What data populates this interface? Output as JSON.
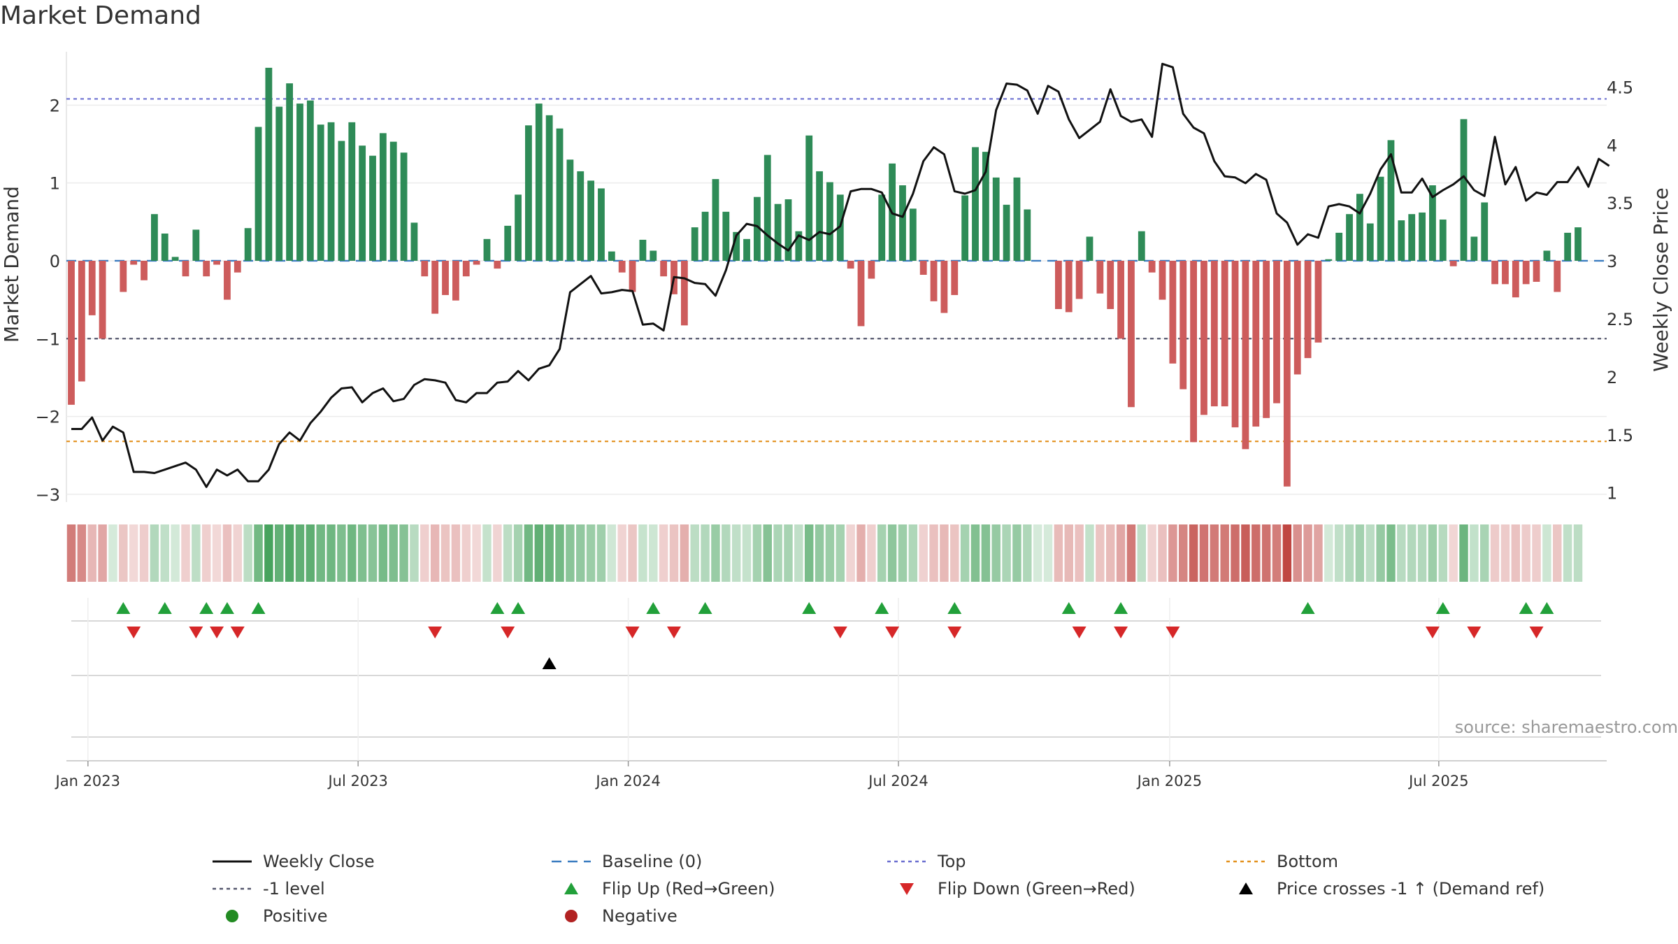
{
  "title": "Market Demand",
  "source": "source: sharemaestro.com",
  "chart_data": {
    "type": "bar",
    "title": "Market Demand",
    "ylabel": "Market Demand",
    "y2label": "Weekly Close Price",
    "ylim": [
      -3.1,
      2.65
    ],
    "y2lim": [
      0.92,
      4.78
    ],
    "yticks": [
      {
        "v": 2,
        "label": "2"
      },
      {
        "v": 1,
        "label": "1"
      },
      {
        "v": 0,
        "label": "0"
      },
      {
        "v": -1,
        "label": "−1"
      },
      {
        "v": -2,
        "label": "−2"
      },
      {
        "v": -3,
        "label": "−3"
      }
    ],
    "y2ticks": [
      {
        "v": 4.5,
        "label": "4.5"
      },
      {
        "v": 4,
        "label": "4"
      },
      {
        "v": 3.5,
        "label": "3.5"
      },
      {
        "v": 3,
        "label": "3"
      },
      {
        "v": 2.5,
        "label": "2.5"
      },
      {
        "v": 2,
        "label": "2"
      },
      {
        "v": 1.5,
        "label": "1.5"
      },
      {
        "v": 1,
        "label": "1"
      }
    ],
    "xticks": [
      {
        "pos": 1.6,
        "label": "Jan 2023"
      },
      {
        "pos": 27.6,
        "label": "Jul 2023"
      },
      {
        "pos": 53.6,
        "label": "Jan 2024"
      },
      {
        "pos": 79.6,
        "label": "Jul 2024"
      },
      {
        "pos": 105.7,
        "label": "Jan 2025"
      },
      {
        "pos": 131.6,
        "label": "Jul 2025"
      }
    ],
    "levels": {
      "top": 2.08,
      "bottom": -2.32,
      "minus_one": -1,
      "baseline": 0
    },
    "demand": [
      -1.85,
      -1.55,
      -0.7,
      -1.0,
      0,
      -0.4,
      -0.05,
      -0.25,
      0.6,
      0.35,
      0.05,
      -0.2,
      0.4,
      -0.2,
      -0.05,
      -0.5,
      -0.15,
      0.42,
      1.72,
      2.48,
      1.98,
      2.28,
      2.02,
      2.06,
      1.75,
      1.78,
      1.54,
      1.78,
      1.48,
      1.35,
      1.64,
      1.53,
      1.39,
      0.49,
      -0.2,
      -0.68,
      -0.44,
      -0.51,
      -0.2,
      -0.05,
      0.28,
      -0.1,
      0.45,
      0.85,
      1.74,
      2.02,
      1.87,
      1.7,
      1.3,
      1.15,
      1.03,
      0.93,
      0.12,
      -0.15,
      -0.4,
      0.27,
      0.13,
      -0.2,
      -0.43,
      -0.83,
      0.43,
      0.63,
      1.05,
      0.63,
      0.37,
      0.28,
      0.82,
      1.36,
      0.73,
      0.79,
      0.38,
      1.61,
      1.15,
      1.01,
      0.85,
      -0.1,
      -0.84,
      -0.23,
      0.85,
      1.25,
      0.97,
      0.67,
      -0.18,
      -0.52,
      -0.67,
      -0.44,
      0.84,
      1.46,
      1.4,
      1.07,
      0.72,
      1.07,
      0.66,
      0,
      0,
      -0.62,
      -0.66,
      -0.49,
      0.31,
      -0.42,
      -0.62,
      -1.0,
      -1.88,
      0.38,
      -0.15,
      -0.5,
      -1.32,
      -1.65,
      -2.33,
      -1.98,
      -1.87,
      -1.87,
      -2.14,
      -2.42,
      -2.13,
      -2.02,
      -1.83,
      -2.9,
      -1.46,
      -1.25,
      -1.05,
      0.02,
      0.36,
      0.6,
      0.86,
      0.48,
      1.08,
      1.55,
      0.52,
      0.6,
      0.62,
      0.97,
      0.53,
      -0.07,
      1.82,
      0.31,
      0.75,
      -0.3,
      -0.3,
      -0.47,
      -0.3,
      -0.27,
      0.13,
      -0.4,
      0.36,
      0.43
    ],
    "price": [
      1.55,
      1.55,
      1.65,
      1.45,
      1.57,
      1.52,
      1.18,
      1.18,
      1.17,
      1.2,
      1.23,
      1.26,
      1.2,
      1.05,
      1.2,
      1.15,
      1.2,
      1.1,
      1.1,
      1.2,
      1.42,
      1.52,
      1.45,
      1.6,
      1.7,
      1.82,
      1.9,
      1.91,
      1.78,
      1.86,
      1.9,
      1.79,
      1.81,
      1.93,
      1.98,
      1.97,
      1.95,
      1.8,
      1.78,
      1.86,
      1.86,
      1.95,
      1.96,
      2.05,
      1.97,
      2.07,
      2.1,
      2.24,
      2.73,
      2.8,
      2.87,
      2.72,
      2.73,
      2.75,
      2.74,
      2.45,
      2.46,
      2.4,
      2.86,
      2.85,
      2.81,
      2.8,
      2.7,
      2.92,
      3.22,
      3.32,
      3.3,
      3.22,
      3.15,
      3.09,
      3.22,
      3.18,
      3.25,
      3.23,
      3.3,
      3.6,
      3.62,
      3.62,
      3.59,
      3.41,
      3.38,
      3.58,
      3.86,
      3.98,
      3.92,
      3.6,
      3.58,
      3.61,
      3.77,
      4.3,
      4.53,
      4.52,
      4.47,
      4.27,
      4.51,
      4.46,
      4.22,
      4.06,
      4.13,
      4.2,
      4.48,
      4.25,
      4.2,
      4.22,
      4.07,
      4.7,
      4.67,
      4.27,
      4.15,
      4.1,
      3.86,
      3.73,
      3.72,
      3.67,
      3.75,
      3.7,
      3.41,
      3.33,
      3.14,
      3.23,
      3.2,
      3.47,
      3.49,
      3.47,
      3.41,
      3.58,
      3.79,
      3.92,
      3.59,
      3.59,
      3.71,
      3.55,
      3.61,
      3.66,
      3.73,
      3.61,
      3.56,
      4.07,
      3.66,
      3.81,
      3.52,
      3.59,
      3.57,
      3.68,
      3.68,
      3.81,
      3.64,
      3.88,
      3.82
    ],
    "flip_up": [
      5,
      9,
      13,
      15,
      18,
      41,
      43,
      56,
      61,
      71,
      78,
      85,
      96,
      101,
      119,
      132,
      140,
      142
    ],
    "flip_down": [
      6,
      12,
      14,
      16,
      35,
      42,
      54,
      58,
      74,
      79,
      85,
      97,
      101,
      106,
      131,
      135,
      141
    ],
    "price_crosses": [
      46
    ]
  },
  "legend": [
    {
      "label": "Weekly Close",
      "kind": "line-solid",
      "color": "#111111"
    },
    {
      "label": "Baseline (0)",
      "kind": "line-dash",
      "color": "#3a7cc0"
    },
    {
      "label": "Top",
      "kind": "line-dot",
      "color": "#6b6fd0"
    },
    {
      "label": "Bottom",
      "kind": "line-dot",
      "color": "#e3911e"
    },
    {
      "label": "-1 level",
      "kind": "line-dot",
      "color": "#56586e"
    },
    {
      "label": "Flip Up (Red→Green)",
      "kind": "tri-up",
      "color": "#22a03a"
    },
    {
      "label": "Flip Down (Green→Red)",
      "kind": "tri-down",
      "color": "#d62728"
    },
    {
      "label": "Price crosses -1 ↑ (Demand ref)",
      "kind": "tri-up",
      "color": "#000000"
    },
    {
      "label": "Positive",
      "kind": "dot",
      "color": "#228b22"
    },
    {
      "label": "Negative",
      "kind": "dot",
      "color": "#b22222"
    }
  ],
  "colors": {
    "positive_bar": "#2e8b57",
    "negative_bar": "#cd5c5c",
    "price_line": "#111111"
  }
}
